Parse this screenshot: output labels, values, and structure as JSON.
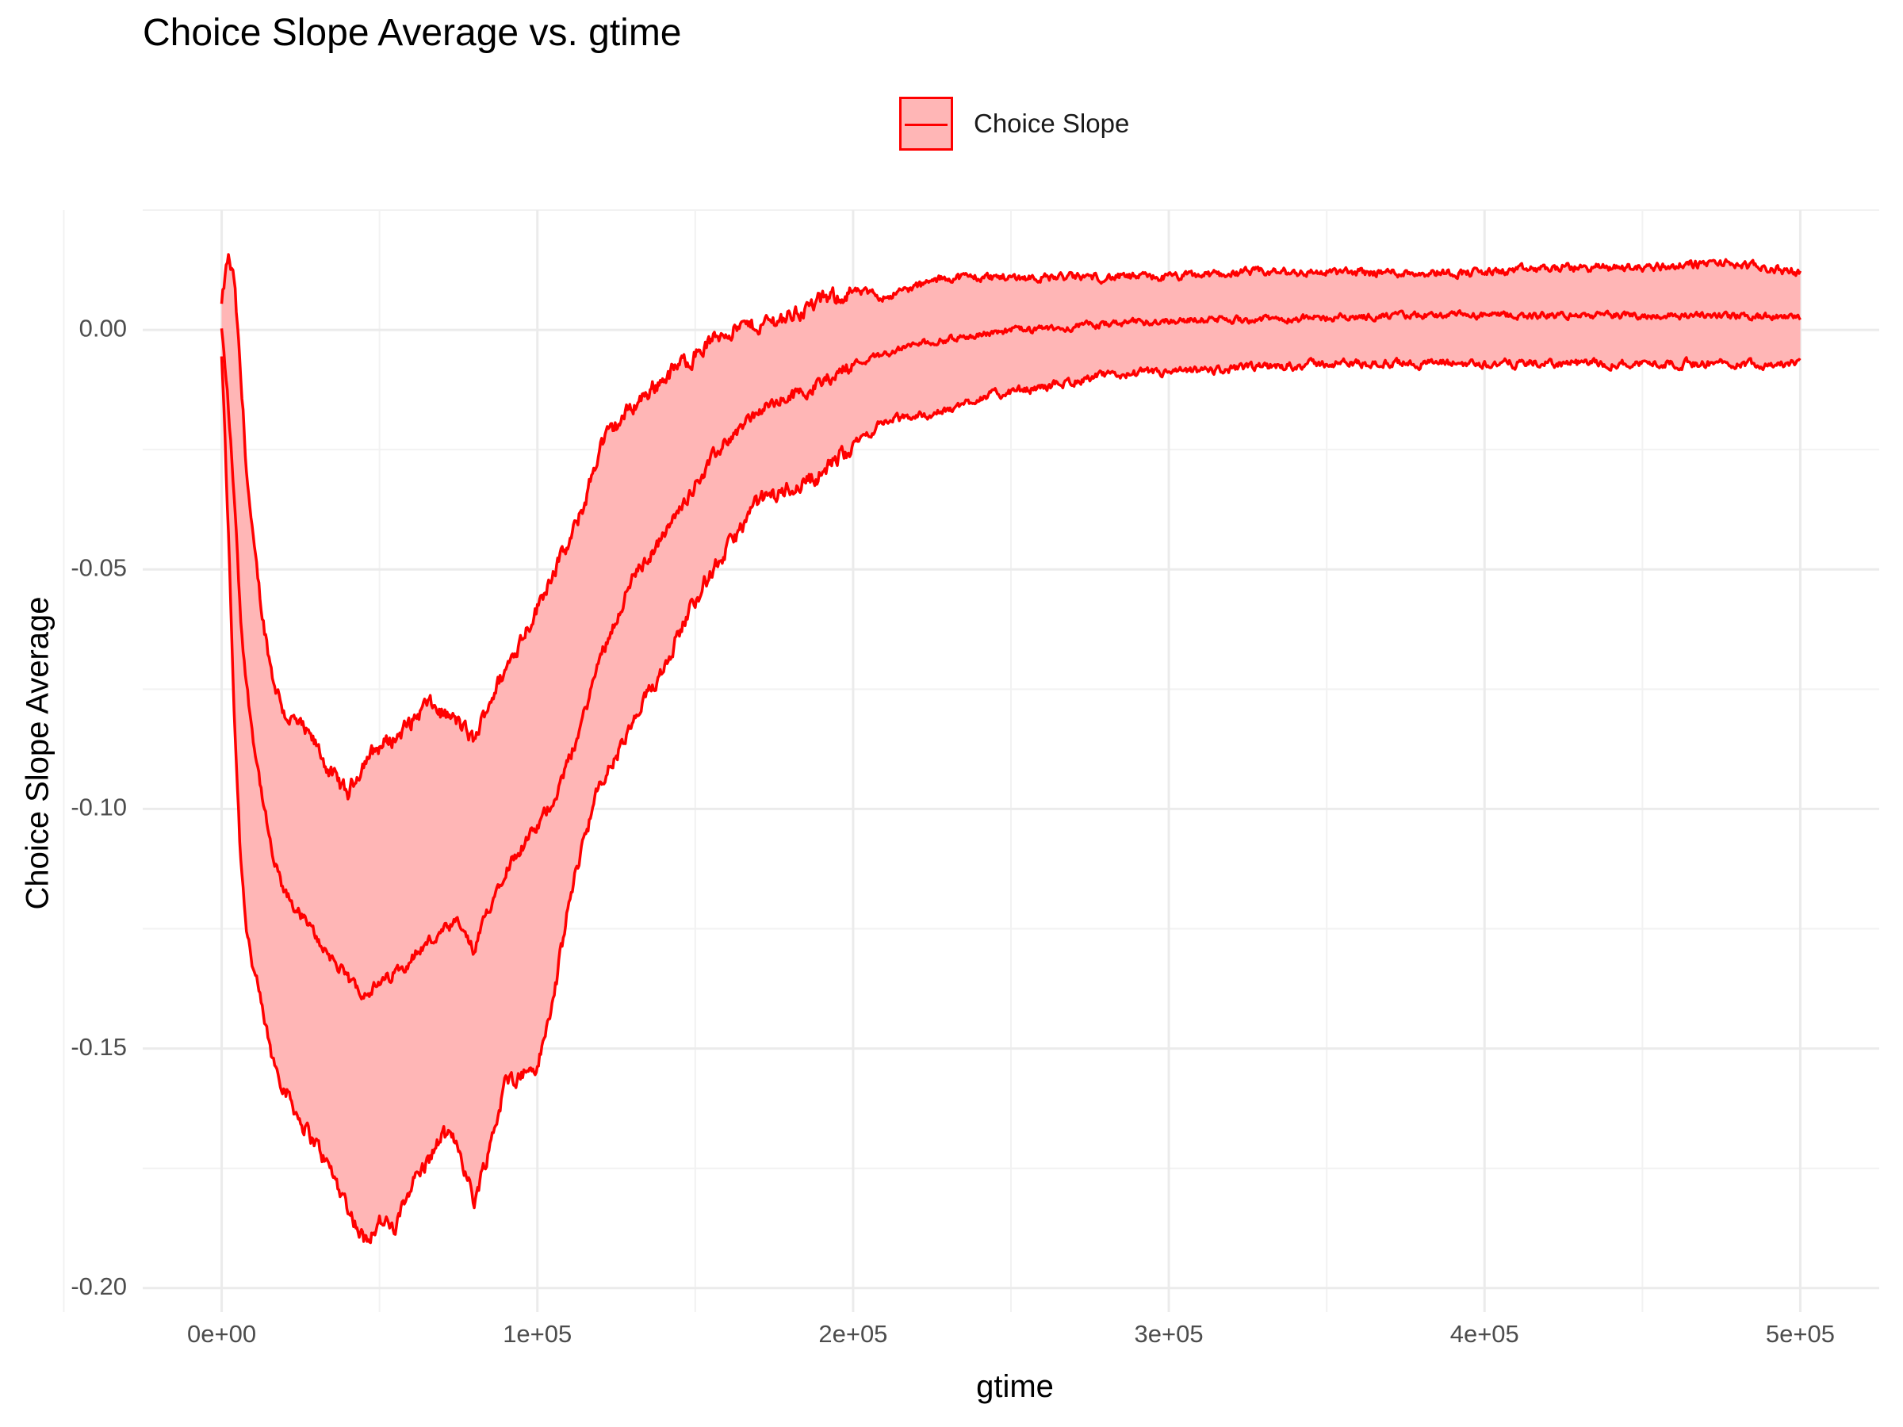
{
  "chart_data": {
    "type": "line",
    "title": "Choice Slope Average vs. gtime",
    "xlabel": "gtime",
    "ylabel": "Choice Slope Average",
    "xlim": [
      -25000,
      525000
    ],
    "ylim": [
      -0.205,
      0.025
    ],
    "x_ticks": [
      0,
      100000,
      200000,
      300000,
      400000,
      500000
    ],
    "x_tick_labels": [
      "0e+00",
      "1e+05",
      "2e+05",
      "3e+05",
      "4e+05",
      "5e+05"
    ],
    "y_ticks": [
      -0.2,
      -0.15,
      -0.1,
      -0.05,
      0.0
    ],
    "y_tick_labels": [
      "-0.20",
      "-0.15",
      "-0.10",
      "-0.05",
      "0.00"
    ],
    "grid": true,
    "legend_position": "top",
    "series": [
      {
        "name": "Choice Slope",
        "color": "#ff0000",
        "fill": "#ffb6b6",
        "x": [
          0,
          2000,
          4000,
          6000,
          8000,
          10000,
          13000,
          16000,
          20000,
          25000,
          30000,
          35000,
          40000,
          45000,
          50000,
          55000,
          60000,
          65000,
          70000,
          75000,
          80000,
          85000,
          90000,
          95000,
          100000,
          105000,
          110000,
          115000,
          120000,
          130000,
          140000,
          150000,
          160000,
          170000,
          180000,
          190000,
          200000,
          210000,
          220000,
          230000,
          240000,
          250000,
          260000,
          275000,
          290000,
          300000,
          325000,
          350000,
          375000,
          400000,
          425000,
          450000,
          475000,
          500000
        ],
        "mean": [
          0.0,
          -0.015,
          -0.035,
          -0.06,
          -0.075,
          -0.085,
          -0.098,
          -0.11,
          -0.118,
          -0.122,
          -0.127,
          -0.131,
          -0.136,
          -0.138,
          -0.137,
          -0.134,
          -0.131,
          -0.128,
          -0.126,
          -0.124,
          -0.13,
          -0.12,
          -0.112,
          -0.108,
          -0.104,
          -0.098,
          -0.09,
          -0.08,
          -0.068,
          -0.052,
          -0.043,
          -0.032,
          -0.023,
          -0.017,
          -0.014,
          -0.011,
          -0.007,
          -0.005,
          -0.003,
          -0.002,
          -0.001,
          0.0,
          0.0,
          0.001,
          0.0015,
          0.002,
          0.0022,
          0.0025,
          0.003,
          0.003,
          0.003,
          0.003,
          0.003,
          0.0025
        ],
        "upper": [
          0.005,
          0.015,
          0.01,
          -0.01,
          -0.03,
          -0.045,
          -0.06,
          -0.072,
          -0.08,
          -0.083,
          -0.087,
          -0.093,
          -0.097,
          -0.09,
          -0.087,
          -0.085,
          -0.082,
          -0.078,
          -0.08,
          -0.082,
          -0.086,
          -0.077,
          -0.071,
          -0.064,
          -0.058,
          -0.05,
          -0.045,
          -0.036,
          -0.024,
          -0.016,
          -0.01,
          -0.005,
          0.0,
          0.001,
          0.003,
          0.006,
          0.008,
          0.007,
          0.009,
          0.011,
          0.011,
          0.011,
          0.011,
          0.011,
          0.011,
          0.011,
          0.012,
          0.012,
          0.012,
          0.012,
          0.013,
          0.013,
          0.014,
          0.012
        ],
        "lower": [
          -0.005,
          -0.04,
          -0.08,
          -0.11,
          -0.125,
          -0.133,
          -0.143,
          -0.152,
          -0.158,
          -0.165,
          -0.17,
          -0.176,
          -0.183,
          -0.19,
          -0.186,
          -0.188,
          -0.178,
          -0.174,
          -0.168,
          -0.17,
          -0.182,
          -0.17,
          -0.157,
          -0.155,
          -0.154,
          -0.14,
          -0.12,
          -0.105,
          -0.095,
          -0.083,
          -0.07,
          -0.056,
          -0.046,
          -0.036,
          -0.033,
          -0.03,
          -0.024,
          -0.019,
          -0.018,
          -0.017,
          -0.014,
          -0.013,
          -0.012,
          -0.01,
          -0.009,
          -0.009,
          -0.008,
          -0.007,
          -0.007,
          -0.007,
          -0.007,
          -0.007,
          -0.007,
          -0.007
        ]
      }
    ]
  }
}
